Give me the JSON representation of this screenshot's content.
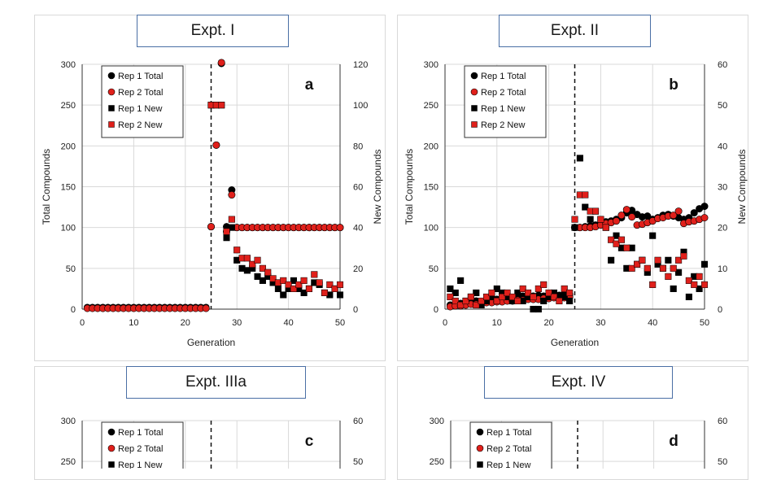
{
  "panels": [
    {
      "title": "Expt. I",
      "letter": "a",
      "xlabel": "Generation",
      "ylabel_left": "Total Compounds",
      "ylabel_right": "New Compounds",
      "xticks": [
        "0",
        "10",
        "20",
        "30",
        "40",
        "50"
      ],
      "yticks_left": [
        "0",
        "50",
        "100",
        "150",
        "200",
        "250",
        "300"
      ],
      "yticks_right": [
        "0",
        "20",
        "40",
        "60",
        "80",
        "100",
        "120"
      ],
      "legend": [
        "Rep 1 Total",
        "Rep 2 Total",
        "Rep 1 New",
        "Rep 2 New"
      ]
    },
    {
      "title": "Expt. II",
      "letter": "b",
      "xlabel": "Generation",
      "ylabel_left": "Total Compounds",
      "ylabel_right": "New Compounds",
      "xticks": [
        "0",
        "10",
        "20",
        "30",
        "40",
        "50"
      ],
      "yticks_left": [
        "0",
        "50",
        "100",
        "150",
        "200",
        "250",
        "300"
      ],
      "yticks_right": [
        "0",
        "10",
        "20",
        "30",
        "40",
        "50",
        "60"
      ],
      "legend": [
        "Rep 1 Total",
        "Rep 2 Total",
        "Rep 1 New",
        "Rep 2 New"
      ]
    },
    {
      "title": "Expt. IIIa",
      "letter": "c",
      "xlabel": "",
      "ylabel_left": "",
      "ylabel_right": "",
      "xticks": [],
      "yticks_left": [
        "250",
        "300"
      ],
      "yticks_right": [
        "50",
        "60"
      ],
      "legend": [
        "Rep 1 Total",
        "Rep 2 Total",
        "Rep 1 New"
      ]
    },
    {
      "title": "Expt. IV",
      "letter": "d",
      "xlabel": "",
      "ylabel_left": "",
      "ylabel_right": "",
      "xticks": [],
      "yticks_left": [
        "250",
        "300"
      ],
      "yticks_right": [
        "50",
        "60"
      ],
      "legend": [
        "Rep 1 Total",
        "Rep 2 Total",
        "Rep 1 New"
      ]
    }
  ],
  "colors": {
    "rep1": "#000000",
    "rep2": "#e0201b",
    "title_border": "#4a6fa5",
    "grid": "#d9d9d9"
  },
  "chart_data": [
    {
      "type": "scatter",
      "title": "Expt. I",
      "xlabel": "Generation",
      "ylabel": "Total Compounds",
      "y2label": "New Compounds",
      "xlim": [
        0,
        50
      ],
      "ylim": [
        0,
        300
      ],
      "y2lim": [
        0,
        120
      ],
      "vline_x": 25,
      "grid": true,
      "legend_placement": "top-left",
      "series": [
        {
          "name": "Rep 1 Total",
          "axis": "left",
          "marker": "circle",
          "color": "#000000",
          "x": [
            1,
            2,
            3,
            4,
            5,
            6,
            7,
            8,
            9,
            10,
            11,
            12,
            13,
            14,
            15,
            16,
            17,
            18,
            19,
            20,
            21,
            22,
            23,
            24,
            25,
            26,
            27,
            28,
            29,
            30,
            31,
            32,
            33,
            34,
            35,
            36,
            37,
            38,
            39,
            40,
            41,
            42,
            43,
            44,
            45,
            46,
            47,
            48,
            49,
            50
          ],
          "y": [
            2,
            2,
            2,
            2,
            2,
            2,
            2,
            2,
            2,
            2,
            2,
            2,
            2,
            2,
            2,
            2,
            2,
            2,
            2,
            2,
            2,
            2,
            2,
            2,
            101,
            201,
            301,
            101,
            146,
            100,
            100,
            100,
            100,
            100,
            100,
            100,
            100,
            100,
            100,
            100,
            100,
            100,
            100,
            100,
            100,
            100,
            100,
            100,
            100,
            100
          ]
        },
        {
          "name": "Rep 2 Total",
          "axis": "left",
          "marker": "circle",
          "color": "#e0201b",
          "x": [
            1,
            2,
            3,
            4,
            5,
            6,
            7,
            8,
            9,
            10,
            11,
            12,
            13,
            14,
            15,
            16,
            17,
            18,
            19,
            20,
            21,
            22,
            23,
            24,
            25,
            26,
            27,
            28,
            29,
            30,
            31,
            32,
            33,
            34,
            35,
            36,
            37,
            38,
            39,
            40,
            41,
            42,
            43,
            44,
            45,
            46,
            47,
            48,
            49,
            50
          ],
          "y": [
            1,
            1,
            1,
            1,
            1,
            1,
            1,
            1,
            1,
            1,
            1,
            1,
            1,
            1,
            1,
            1,
            1,
            1,
            1,
            1,
            1,
            1,
            1,
            1,
            101,
            201,
            302,
            95,
            140,
            100,
            100,
            100,
            100,
            100,
            100,
            100,
            100,
            100,
            100,
            100,
            100,
            100,
            100,
            100,
            100,
            100,
            100,
            100,
            100,
            100
          ]
        },
        {
          "name": "Rep 1 New",
          "axis": "right",
          "marker": "square",
          "color": "#000000",
          "x": [
            25,
            26,
            27,
            28,
            29,
            30,
            31,
            32,
            33,
            34,
            35,
            36,
            37,
            38,
            39,
            40,
            41,
            42,
            43,
            44,
            45,
            46,
            47,
            48,
            49,
            50
          ],
          "y": [
            100,
            100,
            100,
            35,
            40,
            24,
            20,
            19,
            20,
            16,
            14,
            16,
            13,
            10,
            7,
            10,
            14,
            10,
            8,
            10,
            13,
            12,
            8,
            7,
            10,
            7
          ]
        },
        {
          "name": "Rep 2 New",
          "axis": "right",
          "marker": "square",
          "color": "#e0201b",
          "x": [
            25,
            26,
            27,
            28,
            29,
            30,
            31,
            32,
            33,
            34,
            35,
            36,
            37,
            38,
            39,
            40,
            41,
            42,
            43,
            44,
            45,
            46,
            47,
            48,
            49,
            50
          ],
          "y": [
            100,
            100,
            100,
            38,
            44,
            29,
            25,
            25,
            22,
            24,
            20,
            18,
            15,
            13,
            14,
            12,
            10,
            12,
            14,
            10,
            17,
            13,
            8,
            12,
            10,
            12
          ]
        }
      ]
    },
    {
      "type": "scatter",
      "title": "Expt. II",
      "xlabel": "Generation",
      "ylabel": "Total Compounds",
      "y2label": "New Compounds",
      "xlim": [
        0,
        50
      ],
      "ylim": [
        0,
        300
      ],
      "y2lim": [
        0,
        60
      ],
      "vline_x": 25,
      "grid": true,
      "legend_placement": "top-left",
      "series": [
        {
          "name": "Rep 1 Total",
          "axis": "left",
          "marker": "circle",
          "color": "#000000",
          "x": [
            1,
            2,
            3,
            4,
            5,
            6,
            7,
            8,
            9,
            10,
            11,
            12,
            13,
            14,
            15,
            16,
            17,
            18,
            19,
            20,
            21,
            22,
            23,
            24,
            25,
            26,
            27,
            28,
            29,
            30,
            31,
            32,
            33,
            34,
            35,
            36,
            37,
            38,
            39,
            40,
            41,
            42,
            43,
            44,
            45,
            46,
            47,
            48,
            49,
            50
          ],
          "y": [
            5,
            6,
            7,
            8,
            9,
            10,
            9,
            11,
            12,
            12,
            13,
            14,
            13,
            15,
            16,
            15,
            16,
            17,
            16,
            18,
            18,
            17,
            19,
            18,
            100,
            100,
            101,
            102,
            103,
            105,
            107,
            108,
            110,
            112,
            118,
            121,
            116,
            113,
            114,
            110,
            112,
            115,
            116,
            114,
            112,
            110,
            112,
            118,
            123,
            126
          ]
        },
        {
          "name": "Rep 2 Total",
          "axis": "left",
          "marker": "circle",
          "color": "#e0201b",
          "x": [
            1,
            2,
            3,
            4,
            5,
            6,
            7,
            8,
            9,
            10,
            11,
            12,
            13,
            14,
            15,
            16,
            17,
            18,
            19,
            20,
            21,
            22,
            23,
            24,
            25,
            26,
            27,
            28,
            29,
            30,
            31,
            32,
            33,
            34,
            35,
            36,
            37,
            38,
            39,
            40,
            41,
            42,
            43,
            44,
            45,
            46,
            47,
            48,
            49,
            50
          ],
          "y": [
            3,
            4,
            4,
            5,
            6,
            6,
            7,
            8,
            8,
            9,
            9,
            10,
            10,
            11,
            11,
            12,
            12,
            12,
            13,
            13,
            14,
            14,
            14,
            15,
            100,
            100,
            100,
            100,
            101,
            103,
            105,
            106,
            108,
            115,
            122,
            113,
            103,
            104,
            106,
            108,
            111,
            112,
            114,
            115,
            120,
            105,
            107,
            108,
            110,
            112
          ]
        },
        {
          "name": "Rep 1 New",
          "axis": "right",
          "marker": "square",
          "color": "#000000",
          "x": [
            1,
            2,
            3,
            4,
            5,
            6,
            7,
            8,
            9,
            10,
            11,
            12,
            13,
            14,
            15,
            16,
            17,
            18,
            19,
            20,
            21,
            22,
            23,
            24,
            25,
            26,
            27,
            28,
            29,
            30,
            31,
            32,
            33,
            34,
            35,
            36,
            37,
            38,
            39,
            40,
            41,
            42,
            43,
            44,
            45,
            46,
            47,
            48,
            49,
            50
          ],
          "y": [
            5,
            4,
            7,
            2,
            3,
            4,
            1,
            2,
            3,
            5,
            4,
            3,
            2,
            4,
            2,
            3,
            0,
            0,
            2,
            3,
            4,
            3,
            3,
            2,
            20,
            37,
            25,
            22,
            24,
            22,
            20,
            12,
            18,
            15,
            10,
            15,
            11,
            12,
            9,
            18,
            11,
            10,
            12,
            5,
            9,
            14,
            3,
            8,
            5,
            11
          ]
        },
        {
          "name": "Rep 2 New",
          "axis": "right",
          "marker": "square",
          "color": "#e0201b",
          "x": [
            1,
            2,
            3,
            4,
            5,
            6,
            7,
            8,
            9,
            10,
            11,
            12,
            13,
            14,
            15,
            16,
            17,
            18,
            19,
            20,
            21,
            22,
            23,
            24,
            25,
            26,
            27,
            28,
            29,
            30,
            31,
            32,
            33,
            34,
            35,
            36,
            37,
            38,
            39,
            40,
            41,
            42,
            43,
            44,
            45,
            46,
            47,
            48,
            49,
            50
          ],
          "y": [
            3,
            2,
            1,
            2,
            3,
            1,
            2,
            3,
            4,
            2,
            3,
            4,
            3,
            2,
            5,
            4,
            3,
            5,
            6,
            4,
            3,
            2,
            5,
            4,
            22,
            28,
            28,
            24,
            24,
            22,
            20,
            17,
            16,
            17,
            15,
            10,
            11,
            12,
            10,
            6,
            12,
            10,
            8,
            10,
            12,
            13,
            7,
            6,
            8,
            6
          ]
        }
      ]
    },
    {
      "type": "scatter",
      "title": "Expt. IIIa",
      "xlabel": "",
      "ylabel": "",
      "y2label": "",
      "ylim": [
        0,
        300
      ],
      "y2lim": [
        0,
        60
      ],
      "grid": true,
      "legend_placement": "top-left",
      "series": []
    },
    {
      "type": "scatter",
      "title": "Expt. IV",
      "xlabel": "",
      "ylabel": "",
      "y2label": "",
      "ylim": [
        0,
        300
      ],
      "y2lim": [
        0,
        60
      ],
      "grid": true,
      "legend_placement": "top-left",
      "series": []
    }
  ]
}
